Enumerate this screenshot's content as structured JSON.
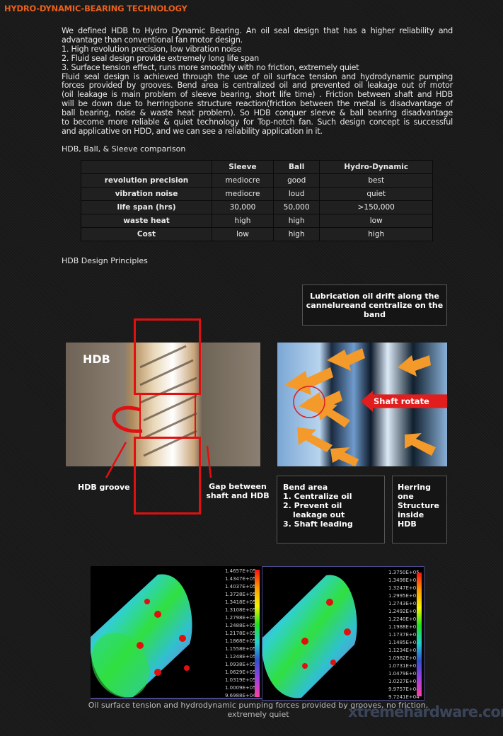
{
  "title": "HYDRO-DYNAMIC-BEARING TECHNOLOGY",
  "intro": {
    "lines": [
      "We defined HDB to Hydro Dynamic Bearing. An oil seal design that has a higher reliability and",
      "advantage than conventional fan motor design.",
      "1. High revolution precision, low vibration noise",
      "2. Fluid seal design provide extremely long life span",
      "3. Surface tension effect, runs more smoothly with no friction, extremely quiet",
      "Fluid seal design is achieved through the use of oil surface tension and hydrodynamic pumping",
      "forces provided by grooves. Bend area is centralized oil and prevented oil leakage out of motor",
      "(oil leakage is main problem of sleeve bearing, short life time) . Friction between shaft and HDB",
      "will be down due to herringbone structure reaction(friction between the metal is disadvantage of",
      "ball bearing, noise & waste heat problem). So HDB conquer sleeve & ball bearing disadvantage",
      "to become more reliable & quiet technology for Top-notch fan. Such design concept is successful",
      "and applicative on HDD, and we can see a reliability application in it."
    ]
  },
  "comparison": {
    "label": "HDB, Ball, & Sleeve comparison",
    "headers": [
      "",
      "Sleeve",
      "Ball",
      "Hydro-Dynamic"
    ],
    "rows": [
      [
        "revolution precision",
        "mediocre",
        "good",
        "best"
      ],
      [
        "vibration noise",
        "mediocre",
        "loud",
        "quiet"
      ],
      [
        "life span (hrs)",
        "30,000",
        "50,000",
        ">150,000"
      ],
      [
        "waste heat",
        "high",
        "high",
        "low"
      ],
      [
        "Cost",
        "low",
        "high",
        "high"
      ]
    ]
  },
  "design": {
    "label": "HDB Design Principles",
    "left_photo": {
      "label": "HDB",
      "groove": "HDB groove",
      "gap": "Gap between shaft and HDB"
    },
    "right_photo": {
      "top_callout": "Lubrication oil drift along the cannelureand centralize on the band",
      "arrow": "Shaft rotate direction",
      "bend": [
        "Bend area",
        "1. Centralize oil",
        "2. Prevent oil",
        "leakage out",
        "3. Shaft leading"
      ],
      "herring": [
        "Herring",
        "one",
        "Structure",
        "inside",
        "HDB"
      ]
    }
  },
  "simulation": {
    "left_legend": [
      "1.4657E+05",
      "1.4347E+05",
      "1.4037E+05",
      "1.3728E+05",
      "1.3418E+05",
      "1.3108E+05",
      "1.2798E+05",
      "1.2488E+05",
      "1.2178E+05",
      "1.1868E+05",
      "1.1558E+05",
      "1.1248E+05",
      "1.0938E+05",
      "1.0629E+05",
      "1.0319E+05",
      "1.0009E+05",
      "9.6988E+04"
    ],
    "right_legend": [
      "1.3750E+05",
      "1.3498E+05",
      "1.3247E+05",
      "1.2995E+05",
      "1.2743E+05",
      "1.2492E+05",
      "1.2240E+05",
      "1.1988E+05",
      "1.1737E+05",
      "1.1485E+05",
      "1.1234E+05",
      "1.0982E+05",
      "1.0731E+05",
      "1.0479E+05",
      "1.0227E+05",
      "9.9757E+04",
      "9.7241E+04"
    ],
    "caption": "Oil surface tension and hydrodynamic pumping forces provided by grooves, no friction, extremely quiet",
    "watermark": "xtremehardware.com"
  }
}
